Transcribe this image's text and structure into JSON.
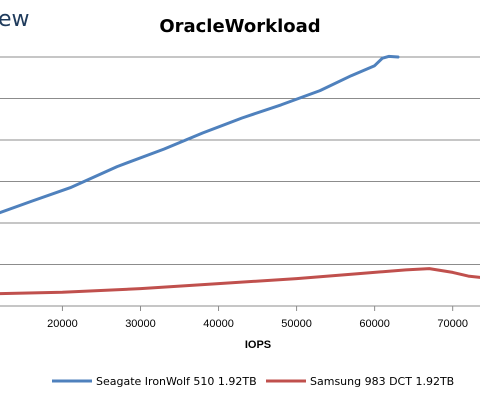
{
  "brand_text": "ew",
  "chart_data": {
    "type": "line",
    "title": "OracleWorkload",
    "xlabel": "IOPS",
    "ylabel": "",
    "xlim": [
      12000,
      73500
    ],
    "ylim": [
      0,
      40
    ],
    "xticks": [
      20000,
      30000,
      40000,
      50000,
      60000,
      70000
    ],
    "x_tick_labels": [
      "20000",
      "30000",
      "40000",
      "50000",
      "60000",
      "70000"
    ],
    "grid": "horizontal",
    "legend_position": "bottom",
    "series": [
      {
        "name": "Seagate IronWolf 510 1.92TB",
        "color": "#4f81bd",
        "x": [
          12000,
          16000,
          21000,
          27000,
          33000,
          38000,
          43000,
          48000,
          53000,
          57000,
          60000,
          61000,
          61800,
          63000
        ],
        "y": [
          15.0,
          16.8,
          19.0,
          22.4,
          25.2,
          27.8,
          30.2,
          32.3,
          34.6,
          37.0,
          38.6,
          39.8,
          40.1,
          40.0
        ]
      },
      {
        "name": "Samsung 983 DCT 1.92TB",
        "color": "#c0504d",
        "x": [
          12000,
          20000,
          30000,
          40000,
          50000,
          58000,
          64000,
          67000,
          70000,
          72000,
          73500
        ],
        "y": [
          2.0,
          2.2,
          2.8,
          3.6,
          4.4,
          5.2,
          5.8,
          6.0,
          5.4,
          4.8,
          4.6
        ]
      }
    ]
  }
}
